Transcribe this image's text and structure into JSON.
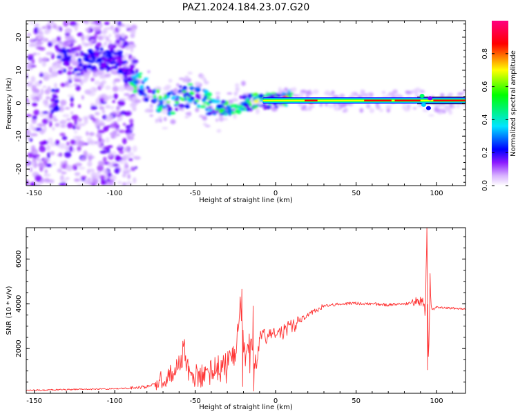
{
  "title": "PAZ1.2024.184.23.07.G20",
  "colors": {
    "snr_line": "#ff3333",
    "band_edge": "#1a1a1a",
    "colormap": [
      "#ffffff",
      "#d9b3ff",
      "#8c1aff",
      "#0000ff",
      "#00e5ff",
      "#00ff00",
      "#ffff00",
      "#ff0000",
      "#ff0080"
    ]
  },
  "chart_data": [
    {
      "type": "heatmap",
      "name": "spectrogram",
      "xlabel": "Height of straight line (km)",
      "ylabel": "Frequency (Hz)",
      "xlim": [
        -155,
        118
      ],
      "ylim": [
        -25,
        25
      ],
      "xticks": [
        -150,
        -100,
        -50,
        0,
        50,
        100
      ],
      "yticks": [
        -20,
        -10,
        0,
        10,
        20
      ],
      "colorbar": {
        "label": "Normalized spectral amplitude",
        "range": [
          0,
          1
        ],
        "ticks": [
          "0.0",
          "0.2",
          "0.4",
          "0.6",
          "0.8"
        ]
      },
      "features": {
        "noise_region_x": [
          -155,
          -92
        ],
        "strong_band_x": [
          0,
          118
        ],
        "strong_band_center_hz": 0.8,
        "ridge": [
          [
            -135,
            13
          ],
          [
            -120,
            12
          ],
          [
            -100,
            14
          ],
          [
            -90,
            8
          ],
          [
            -80,
            4
          ],
          [
            -70,
            -1
          ],
          [
            -60,
            2
          ],
          [
            -50,
            3
          ],
          [
            -40,
            -1
          ],
          [
            -30,
            -2
          ],
          [
            -20,
            0
          ],
          [
            -10,
            0.5
          ],
          [
            0,
            1
          ],
          [
            10,
            1.5
          ],
          [
            20,
            0.8
          ],
          [
            40,
            0.5
          ],
          [
            60,
            0.6
          ],
          [
            80,
            0.6
          ],
          [
            92,
            1.2
          ],
          [
            96,
            -1
          ],
          [
            118,
            0.8
          ]
        ]
      }
    },
    {
      "type": "line",
      "name": "snr",
      "xlabel": "Height of straight line (km)",
      "ylabel": "SNR (10 * v/v)",
      "xlim": [
        -155,
        118
      ],
      "ylim": [
        0,
        7400
      ],
      "xticks": [
        -150,
        -100,
        -50,
        0,
        50,
        100
      ],
      "yticks": [
        2000,
        4000,
        6000
      ],
      "series": [
        {
          "x": [
            -155,
            -140,
            -120,
            -100,
            -90,
            -80,
            -75,
            -70,
            -65,
            -60,
            -57,
            -55,
            -50,
            -45,
            -40,
            -35,
            -30,
            -25,
            -22,
            -20,
            -18,
            -15,
            -13,
            -10,
            -5,
            0,
            5,
            10,
            15,
            20,
            25,
            30,
            40,
            50,
            60,
            70,
            80,
            85,
            90,
            92,
            93,
            94,
            95,
            96,
            97,
            100,
            110,
            118
          ],
          "y": [
            130,
            150,
            180,
            200,
            230,
            300,
            450,
            650,
            900,
            1250,
            2250,
            1100,
            800,
            900,
            1050,
            1300,
            1400,
            1800,
            3800,
            2400,
            1900,
            2800,
            1000,
            2500,
            2550,
            2650,
            2750,
            3000,
            3250,
            3500,
            3700,
            3900,
            4000,
            4020,
            4000,
            3950,
            3980,
            4050,
            4100,
            4000,
            3500,
            7100,
            1100,
            5000,
            3700,
            3850,
            3800,
            3750
          ]
        }
      ]
    }
  ]
}
